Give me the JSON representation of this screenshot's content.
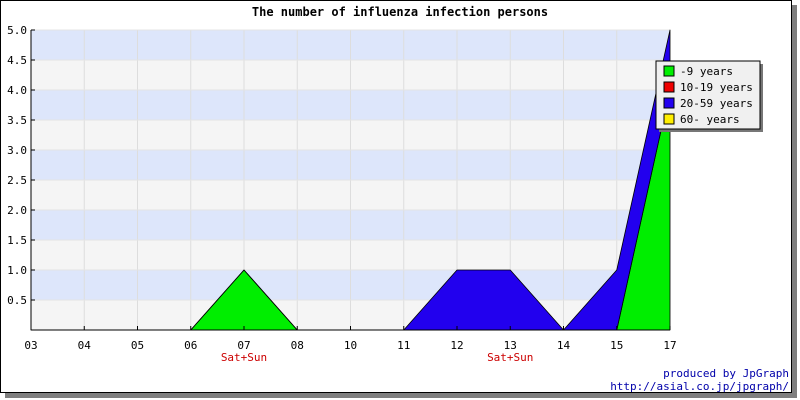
{
  "chart_data": {
    "type": "area",
    "title": "The number of influenza infection persons",
    "categories": [
      "03",
      "04",
      "05",
      "06",
      "07",
      "08",
      "10",
      "11",
      "12",
      "13",
      "14",
      "15",
      "17"
    ],
    "weekend_markers": [
      {
        "category": "07",
        "label": "Sat+Sun"
      },
      {
        "category": "13",
        "label": "Sat+Sun"
      }
    ],
    "series": [
      {
        "name": "-9 years",
        "color": "#00ee00",
        "values": [
          0,
          0,
          0,
          0,
          1,
          0,
          0,
          0,
          0,
          0,
          0,
          0,
          4
        ]
      },
      {
        "name": "10-19 years",
        "color": "#ee0000",
        "values": [
          0,
          0,
          0,
          0,
          0,
          0,
          0,
          0,
          0,
          0,
          0,
          0,
          0
        ]
      },
      {
        "name": "20-59 years",
        "color": "#2200ee",
        "values": [
          0,
          0,
          0,
          0,
          0,
          0,
          0,
          0,
          1,
          1,
          0,
          1,
          1
        ]
      },
      {
        "name": "60- years",
        "color": "#ffee00",
        "values": [
          0,
          0,
          0,
          0,
          0,
          0,
          0,
          0,
          0,
          0,
          0,
          0,
          0
        ]
      }
    ],
    "ylim": [
      0,
      5
    ],
    "yticks": [
      "0.5",
      "1.0",
      "1.5",
      "2.0",
      "2.5",
      "3.0",
      "3.5",
      "4.0",
      "4.5",
      "5.0"
    ],
    "stacked": true,
    "grid": true,
    "band_colors": [
      "#f5f5f5",
      "#dde6fb"
    ],
    "legend_position": "top-right"
  },
  "credit": {
    "line1": "produced by JpGraph",
    "line2": "http://asial.co.jp/jpgraph/"
  }
}
